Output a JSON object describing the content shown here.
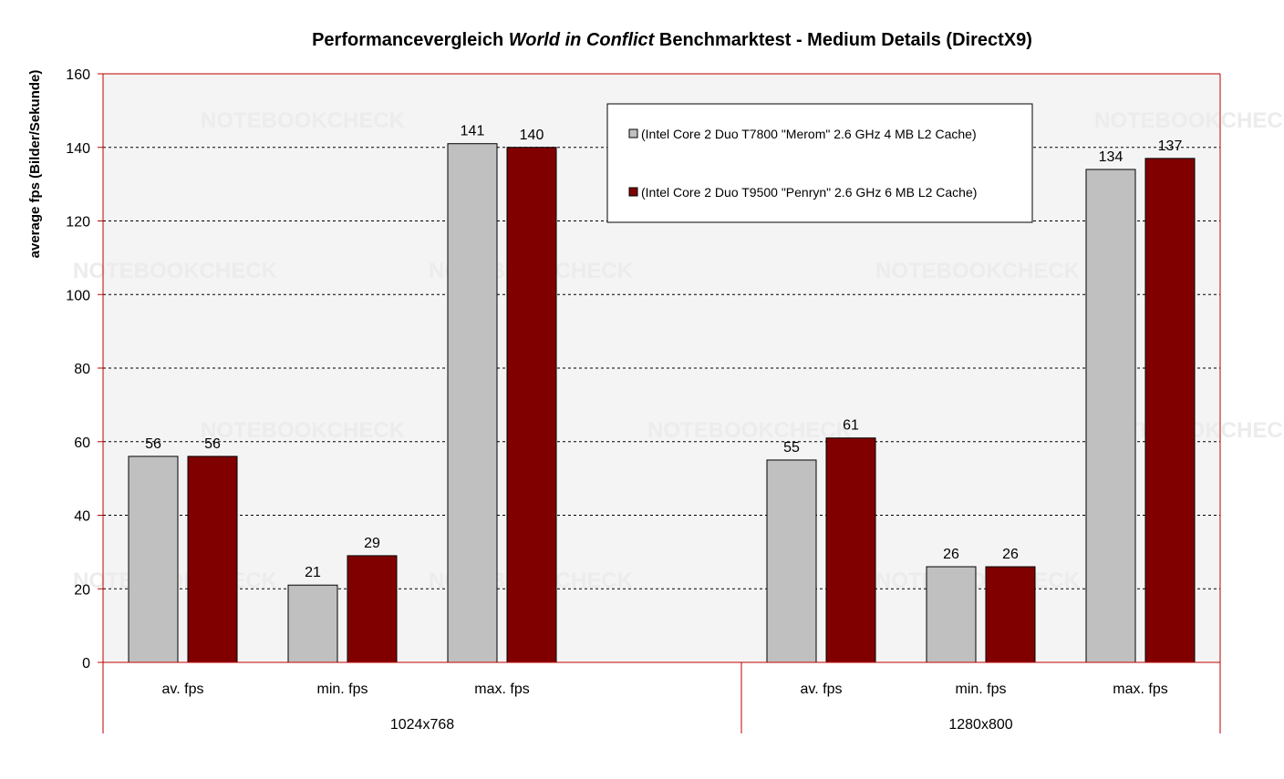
{
  "chart_data": {
    "type": "bar",
    "title_parts": [
      {
        "text": "Performancevergleich ",
        "italic": false
      },
      {
        "text": "World in Conflict",
        "italic": true
      },
      {
        "text": " Benchmarktest -  Medium Details (DirectX9)",
        "italic": false
      }
    ],
    "ylabel": "average fps (Bilder/Sekunde)",
    "ylim": [
      0,
      160
    ],
    "yticks": [
      0,
      20,
      40,
      60,
      80,
      100,
      120,
      140,
      160
    ],
    "groups": [
      {
        "label": "1024x768",
        "categories": [
          "av. fps",
          "min. fps",
          "max. fps",
          ""
        ]
      },
      {
        "label": "1280x800",
        "categories": [
          "av. fps",
          "min. fps",
          "max. fps"
        ]
      }
    ],
    "series": [
      {
        "name": "(Intel Core 2 Duo T7800 \"Merom\" 2.6 GHz 4 MB L2 Cache)",
        "color": "#c0c0c0",
        "values": [
          56,
          21,
          141,
          null,
          55,
          26,
          134
        ]
      },
      {
        "name": "(Intel Core 2 Duo T9500 \"Penryn\" 2.6 GHz 6 MB L2 Cache)",
        "color": "#800000",
        "values": [
          56,
          29,
          140,
          null,
          61,
          26,
          137
        ]
      }
    ],
    "grid": true,
    "legend_position": "top-right",
    "plot_background": "#f4f4f4",
    "axis_color": "#c00000",
    "watermark": "NOTEBOOKCHECK"
  }
}
